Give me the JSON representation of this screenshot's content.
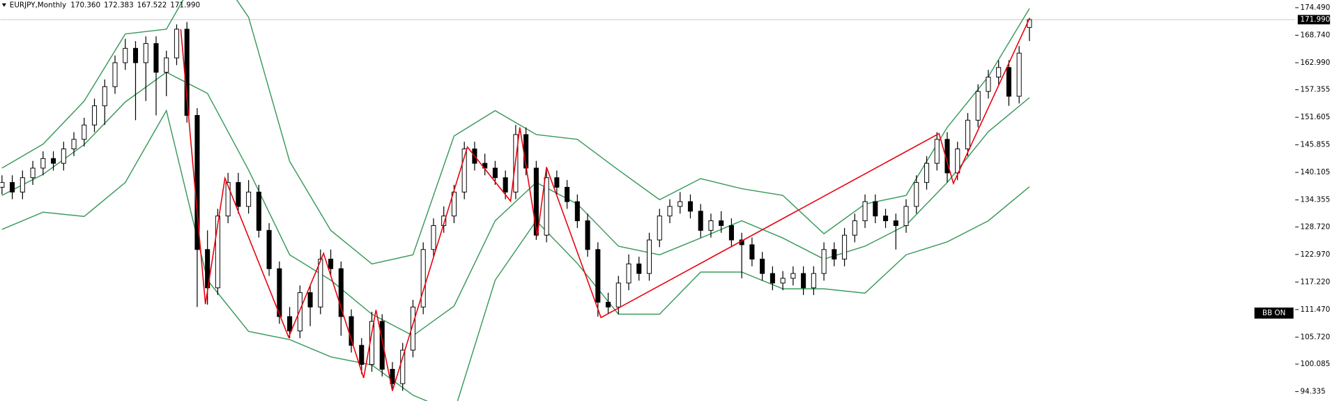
{
  "chart_data": {
    "type": "candlestick",
    "symbol": "EURJPY,Monthly",
    "quote": [
      {
        "value": 170.36,
        "label": "170.360"
      },
      {
        "value": 172.383,
        "label": "172.383"
      },
      {
        "value": 167.522,
        "label": "167.522"
      },
      {
        "value": 171.99,
        "label": "171.990"
      }
    ],
    "ylim": [
      92.38,
      176.09
    ],
    "yticks": [
      {
        "value": 174.49,
        "label": "174.490"
      },
      {
        "value": 168.74,
        "label": "168.740"
      },
      {
        "value": 162.99,
        "label": "162.990"
      },
      {
        "value": 157.355,
        "label": "157.355"
      },
      {
        "value": 151.605,
        "label": "151.605"
      },
      {
        "value": 145.855,
        "label": "145.855"
      },
      {
        "value": 140.105,
        "label": "140.105"
      },
      {
        "value": 134.355,
        "label": "134.355"
      },
      {
        "value": 128.72,
        "label": "128.720"
      },
      {
        "value": 122.97,
        "label": "122.970"
      },
      {
        "value": 117.22,
        "label": "117.220"
      },
      {
        "value": 111.47,
        "label": "111.470"
      },
      {
        "value": 105.72,
        "label": "105.720"
      },
      {
        "value": 100.085,
        "label": "100.085"
      },
      {
        "value": 94.335,
        "label": "94.335"
      }
    ],
    "current_price": {
      "value": 171.99,
      "label": "171.990"
    },
    "indicator_label": "BB ON",
    "candles": [
      [
        137,
        139.5,
        135.5,
        138
      ],
      [
        138,
        139.5,
        134.5,
        136
      ],
      [
        136,
        140.5,
        134.5,
        139
      ],
      [
        139,
        142.5,
        137.5,
        141
      ],
      [
        141,
        144.5,
        139.5,
        143
      ],
      [
        143,
        144.5,
        140.5,
        142
      ],
      [
        142,
        146.5,
        140.5,
        145
      ],
      [
        145,
        148.5,
        143.5,
        147
      ],
      [
        147,
        151.5,
        145.5,
        150
      ],
      [
        150,
        155.5,
        148.5,
        154
      ],
      [
        154,
        159.5,
        150,
        158
      ],
      [
        158,
        164.5,
        156.5,
        163
      ],
      [
        163,
        168,
        161.5,
        166
      ],
      [
        166,
        167.5,
        151,
        163
      ],
      [
        163,
        168.5,
        155,
        167
      ],
      [
        167,
        168.5,
        152,
        161
      ],
      [
        161,
        165.5,
        156,
        164
      ],
      [
        164,
        171,
        162.5,
        170
      ],
      [
        170,
        171.5,
        150.5,
        152
      ],
      [
        152,
        153.5,
        112,
        124
      ],
      [
        124,
        128,
        112.5,
        116
      ],
      [
        116,
        132.5,
        114.5,
        131
      ],
      [
        131,
        140,
        129.5,
        138
      ],
      [
        138,
        140,
        131.5,
        133
      ],
      [
        133,
        138.5,
        131.5,
        136
      ],
      [
        136,
        137.5,
        126.5,
        128
      ],
      [
        128,
        129.5,
        118.5,
        120
      ],
      [
        120,
        121.5,
        108.5,
        110
      ],
      [
        110,
        112,
        105.5,
        107
      ],
      [
        107,
        116.5,
        105.5,
        115
      ],
      [
        115,
        116.5,
        108,
        112
      ],
      [
        112,
        124,
        110.5,
        122
      ],
      [
        122,
        124,
        118.5,
        120
      ],
      [
        120,
        121.5,
        106,
        110
      ],
      [
        110,
        111.5,
        102.5,
        104
      ],
      [
        104,
        105.5,
        98,
        100
      ],
      [
        100,
        111,
        98.5,
        109
      ],
      [
        109,
        110.5,
        97.5,
        99
      ],
      [
        99,
        100.5,
        94.5,
        96
      ],
      [
        96,
        104.5,
        94.5,
        103
      ],
      [
        103,
        113.5,
        101.5,
        112
      ],
      [
        112,
        125.5,
        110.5,
        124
      ],
      [
        124,
        130.5,
        122.5,
        129
      ],
      [
        129,
        133,
        127.5,
        131
      ],
      [
        131,
        137.5,
        129.5,
        136
      ],
      [
        136,
        146.5,
        134.5,
        145
      ],
      [
        145,
        146.5,
        140.5,
        142
      ],
      [
        142,
        144,
        139.5,
        141
      ],
      [
        141,
        142.5,
        137.5,
        139
      ],
      [
        139,
        140.5,
        134.5,
        136
      ],
      [
        136,
        150,
        134.5,
        148
      ],
      [
        148,
        149.5,
        139.5,
        141
      ],
      [
        141,
        142.5,
        126,
        127
      ],
      [
        127,
        141,
        125.5,
        139
      ],
      [
        139,
        140.5,
        135.5,
        137
      ],
      [
        137,
        138.5,
        132.5,
        134
      ],
      [
        134,
        135.5,
        128.5,
        130
      ],
      [
        130,
        131.5,
        122.5,
        124
      ],
      [
        124,
        125.5,
        110,
        113
      ],
      [
        113,
        115,
        110.5,
        112
      ],
      [
        112,
        118.5,
        110.5,
        117
      ],
      [
        117,
        123,
        115.5,
        121
      ],
      [
        121,
        122.5,
        117.5,
        119
      ],
      [
        119,
        127.5,
        117.5,
        126
      ],
      [
        126,
        132.5,
        124.5,
        131
      ],
      [
        131,
        134.5,
        129.5,
        133
      ],
      [
        133,
        136,
        131.5,
        134
      ],
      [
        134,
        135.5,
        130.5,
        132
      ],
      [
        132,
        133.5,
        126.5,
        128
      ],
      [
        128,
        131.5,
        126.5,
        130
      ],
      [
        130,
        132,
        127.5,
        129
      ],
      [
        129,
        130.5,
        124.5,
        126
      ],
      [
        126,
        127.5,
        118,
        125
      ],
      [
        125,
        126.5,
        120.5,
        122
      ],
      [
        122,
        123.5,
        117.5,
        119
      ],
      [
        119,
        120.5,
        115.5,
        117
      ],
      [
        117,
        119.5,
        115.5,
        118
      ],
      [
        118,
        120.5,
        116.5,
        119
      ],
      [
        119,
        120.5,
        114.5,
        116
      ],
      [
        116,
        120.5,
        114.5,
        119
      ],
      [
        119,
        125.5,
        117.5,
        124
      ],
      [
        124,
        125.5,
        120.5,
        122
      ],
      [
        122,
        128.5,
        120.5,
        127
      ],
      [
        127,
        131.5,
        125.5,
        130
      ],
      [
        130,
        135.5,
        128.5,
        134
      ],
      [
        134,
        135.5,
        129.5,
        131
      ],
      [
        131,
        132.5,
        128.5,
        130
      ],
      [
        130,
        131.5,
        124,
        129
      ],
      [
        129,
        134.5,
        127.5,
        133
      ],
      [
        133,
        139.5,
        131.5,
        138
      ],
      [
        138,
        143.5,
        136.5,
        142
      ],
      [
        142,
        148.5,
        140.5,
        147
      ],
      [
        147,
        148.5,
        138,
        140
      ],
      [
        140,
        146.5,
        138.5,
        145
      ],
      [
        145,
        152.5,
        143.5,
        151
      ],
      [
        151,
        158.5,
        149.5,
        157
      ],
      [
        157,
        161.5,
        155.5,
        160
      ],
      [
        160,
        163.5,
        158.5,
        162
      ],
      [
        162,
        163.5,
        154,
        156
      ],
      [
        156,
        166.5,
        154.5,
        165
      ],
      [
        170.36,
        172.383,
        167.522,
        171.99
      ]
    ],
    "bollinger": {
      "color": "#3a9a5c",
      "x": [
        0,
        4,
        8,
        12,
        16,
        20,
        24,
        28,
        32,
        36,
        40,
        44,
        48,
        52,
        56,
        60,
        64,
        68,
        72,
        76,
        80,
        84,
        88,
        92,
        96,
        100
      ],
      "upper": [
        141,
        146,
        155,
        169,
        170,
        185,
        172.5,
        142.4,
        128,
        121,
        122.9,
        147.7,
        153,
        148,
        147,
        140.6,
        134.4,
        138.8,
        136.7,
        135.3,
        127.3,
        133.5,
        135.3,
        149.5,
        160.1,
        174.3
      ],
      "middle": [
        135.3,
        139.7,
        145.9,
        154.8,
        161,
        156.6,
        140.6,
        122.9,
        117.6,
        110.5,
        106,
        112.2,
        130,
        138,
        133.5,
        124.7,
        122.9,
        126.4,
        130,
        126.4,
        122,
        124.7,
        129.1,
        138,
        148.6,
        155.7
      ],
      "lower": [
        128.2,
        131.8,
        130.9,
        138,
        153,
        117.6,
        106.9,
        105.2,
        101.6,
        99.9,
        93.6,
        90,
        117.6,
        130,
        121.1,
        110.5,
        110.5,
        119.3,
        119.3,
        115.8,
        115.8,
        114.9,
        122.9,
        125.6,
        130,
        137.1
      ]
    },
    "zigzag": {
      "color": "#e8000b",
      "x": [
        17.4,
        19.8,
        21.7,
        27.9,
        31.3,
        35.2,
        36.4,
        38,
        45.3,
        49.5,
        50.4,
        52.1,
        53,
        58.3,
        91.2,
        92.6,
        100
      ],
      "values": [
        170,
        112.6,
        138.9,
        105.7,
        123.2,
        97.2,
        111.4,
        94.5,
        145.4,
        134.1,
        149.5,
        126.8,
        141.2,
        109.8,
        148.2,
        137.8,
        172.2
      ]
    }
  }
}
